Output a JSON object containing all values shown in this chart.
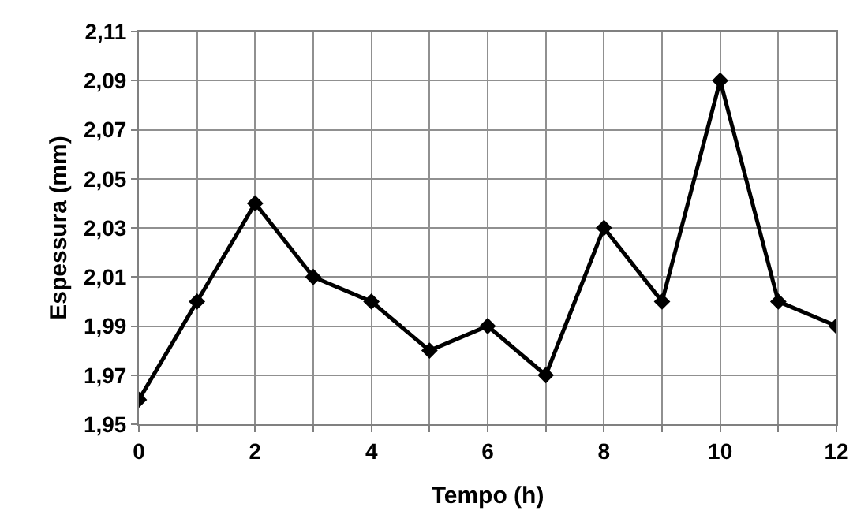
{
  "chart_data": {
    "type": "line",
    "xlabel": "Tempo (h)",
    "ylabel": "Espessura (mm)",
    "x": [
      0,
      1,
      2,
      3,
      4,
      5,
      6,
      7,
      8,
      9,
      10,
      11,
      12
    ],
    "series": [
      {
        "color": "#000000",
        "values": [
          1.96,
          2.0,
          2.04,
          2.01,
          2.0,
          1.98,
          1.99,
          1.97,
          2.03,
          2.0,
          2.09,
          2.0,
          1.99
        ]
      }
    ],
    "xlim": [
      0,
      12
    ],
    "xticks": [
      0,
      {
        "value": 1,
        "label": null
      },
      2,
      {
        "value": 3,
        "label": null
      },
      4,
      {
        "value": 5,
        "label": null
      },
      6,
      {
        "value": 7,
        "label": null
      },
      8,
      {
        "value": 9,
        "label": null
      },
      10,
      {
        "value": 11,
        "label": null
      },
      12
    ],
    "ylim": [
      1.95,
      2.11
    ],
    "yticks": [
      {
        "value": 1.95,
        "label": "1,95"
      },
      {
        "value": 1.97,
        "label": "1,97"
      },
      {
        "value": 1.99,
        "label": "1,99"
      },
      {
        "value": 2.01,
        "label": "2,01"
      },
      {
        "value": 2.03,
        "label": "2,03"
      },
      {
        "value": 2.05,
        "label": "2,05"
      },
      {
        "value": 2.07,
        "label": "2,07"
      },
      {
        "value": 2.09,
        "label": "2,09"
      },
      {
        "value": 2.11,
        "label": "2,11"
      }
    ],
    "grid": true,
    "marker": "diamond",
    "line_style": "solid"
  }
}
